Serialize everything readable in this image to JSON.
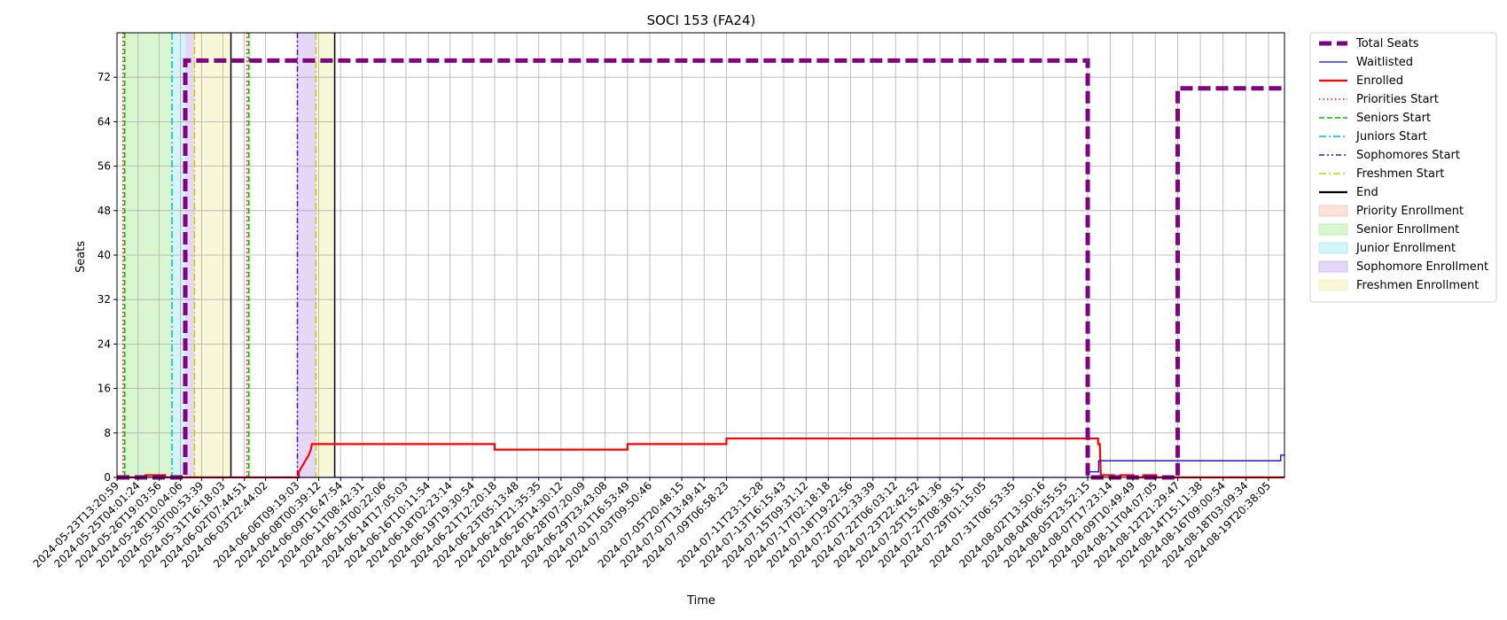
{
  "chart_data": {
    "type": "line",
    "title": "SOCI 153 (FA24)",
    "xlabel": "Time",
    "ylabel": "Seats",
    "ylim": [
      0,
      80
    ],
    "yticks": [
      0,
      8,
      16,
      24,
      32,
      40,
      48,
      56,
      64,
      72
    ],
    "xlim": [
      "2024-05-23T13:20:59",
      "2024-08-21T02:00:00"
    ],
    "xtick_labels": [
      "2024-05-23T13:20:59",
      "2024-05-25T04:01:24",
      "2024-05-26T19:03:56",
      "2024-05-28T10:04:06",
      "2024-05-30T00:53:39",
      "2024-05-31T16:18:03",
      "2024-06-02T07:44:51",
      "2024-06-03T22:44:02",
      "2024-06-06T09:19:03",
      "2024-06-08T00:39:12",
      "2024-06-09T16:47:54",
      "2024-06-11T08:42:31",
      "2024-06-13T00:22:06",
      "2024-06-14T17:05:03",
      "2024-06-16T10:11:54",
      "2024-06-18T02:23:14",
      "2024-06-19T19:30:54",
      "2024-06-21T12:20:18",
      "2024-06-23T05:13:48",
      "2024-06-24T21:35:35",
      "2024-06-26T14:30:12",
      "2024-06-28T07:20:09",
      "2024-06-29T23:43:08",
      "2024-07-01T16:53:49",
      "2024-07-03T09:50:46",
      "2024-07-05T20:48:15",
      "2024-07-07T13:49:41",
      "2024-07-09T06:58:23",
      "2024-07-11T23:15:28",
      "2024-07-13T16:15:43",
      "2024-07-15T09:31:12",
      "2024-07-17T02:18:18",
      "2024-07-18T19:22:56",
      "2024-07-20T12:33:39",
      "2024-07-22T06:03:12",
      "2024-07-23T22:42:52",
      "2024-07-25T15:41:36",
      "2024-07-27T08:38:51",
      "2024-07-29T01:15:05",
      "2024-07-31T06:53:35",
      "2024-08-02T13:50:16",
      "2024-08-04T06:55:55",
      "2024-08-05T23:52:15",
      "2024-08-07T17:23:14",
      "2024-08-09T10:49:49",
      "2024-08-11T04:07:05",
      "2024-08-12T21:29:47",
      "2024-08-14T15:11:38",
      "2024-08-16T09:00:54",
      "2024-08-18T03:09:34",
      "2024-08-19T20:38:05"
    ],
    "grid": true,
    "legend_position": "outside-right",
    "series": [
      {
        "name": "Total Seats",
        "color": "#800080",
        "style": "dashed-thick",
        "points": [
          [
            "2024-05-23T13:20:59",
            0
          ],
          [
            "2024-05-28T19:00:00",
            0
          ],
          [
            "2024-05-28T19:00:00",
            75
          ],
          [
            "2024-08-05T23:52:15",
            75
          ],
          [
            "2024-08-05T23:52:15",
            0
          ],
          [
            "2024-08-12T21:29:47",
            0
          ],
          [
            "2024-08-12T21:29:47",
            70
          ],
          [
            "2024-08-21T02:00:00",
            70
          ]
        ]
      },
      {
        "name": "Waitlisted",
        "color": "#0000ff",
        "style": "solid-thin",
        "points": [
          [
            "2024-05-23T13:20:59",
            0
          ],
          [
            "2024-08-06T00:00:00",
            0
          ],
          [
            "2024-08-06T00:00:00",
            1
          ],
          [
            "2024-08-06T20:00:00",
            1
          ],
          [
            "2024-08-06T20:00:00",
            3
          ],
          [
            "2024-08-20T19:00:00",
            3
          ],
          [
            "2024-08-20T19:00:00",
            4
          ],
          [
            "2024-08-21T02:00:00",
            4
          ]
        ]
      },
      {
        "name": "Enrolled",
        "color": "#ff0000",
        "style": "solid",
        "points": [
          [
            "2024-05-23T13:20:59",
            0
          ],
          [
            "2024-05-25T18:00:00",
            0
          ],
          [
            "2024-05-25T18:00:00",
            0.4
          ],
          [
            "2024-05-27T06:00:00",
            0.4
          ],
          [
            "2024-05-27T06:00:00",
            0
          ],
          [
            "2024-06-06T12:00:00",
            0
          ],
          [
            "2024-06-06T12:00:00",
            1
          ],
          [
            "2024-06-06T18:00:00",
            2
          ],
          [
            "2024-06-07T00:00:00",
            3
          ],
          [
            "2024-06-07T06:00:00",
            4
          ],
          [
            "2024-06-07T10:00:00",
            5
          ],
          [
            "2024-06-07T12:00:00",
            6
          ],
          [
            "2024-06-21T12:20:18",
            6
          ],
          [
            "2024-06-21T12:20:18",
            5
          ],
          [
            "2024-07-01T16:53:49",
            5
          ],
          [
            "2024-07-01T16:53:49",
            6
          ],
          [
            "2024-07-09T06:58:23",
            6
          ],
          [
            "2024-07-09T06:58:23",
            7
          ],
          [
            "2024-08-06T19:00:00",
            7
          ],
          [
            "2024-08-06T19:00:00",
            6
          ],
          [
            "2024-08-06T22:00:00",
            6
          ],
          [
            "2024-08-07T00:00:00",
            0.4
          ],
          [
            "2024-08-08T00:00:00",
            0.4
          ],
          [
            "2024-08-08T00:00:00",
            0
          ],
          [
            "2024-08-08T12:00:00",
            0
          ],
          [
            "2024-08-08T12:00:00",
            0.4
          ],
          [
            "2024-08-09T12:00:00",
            0.4
          ],
          [
            "2024-08-09T12:00:00",
            0
          ],
          [
            "2024-08-10T06:00:00",
            0
          ],
          [
            "2024-08-10T06:00:00",
            0.4
          ],
          [
            "2024-08-11T06:00:00",
            0.4
          ],
          [
            "2024-08-11T06:00:00",
            0
          ],
          [
            "2024-08-21T02:00:00",
            0
          ]
        ]
      }
    ],
    "vlines": [
      {
        "name": "Priorities Start",
        "color": "#ff0000",
        "style": "dotted",
        "x": [
          "2024-05-24T00:30:00",
          "2024-06-02T12:30:00"
        ]
      },
      {
        "name": "Seniors Start",
        "color": "#00bb00",
        "style": "dashed",
        "x": [
          "2024-05-24T03:30:00",
          "2024-06-02T16:00:00"
        ]
      },
      {
        "name": "Juniors Start",
        "color": "#00bfbf",
        "style": "dashdot",
        "x": [
          "2024-05-27T18:30:00"
        ]
      },
      {
        "name": "Sophomores Start",
        "color": "#6000c0",
        "style": "dashdotdot",
        "x": [
          "2024-06-06T09:19:03"
        ]
      },
      {
        "name": "Freshmen Start",
        "color": "#cccc00",
        "style": "dashdot",
        "x": [
          "2024-05-29T12:00:00",
          "2024-06-07T19:30:00"
        ]
      },
      {
        "name": "End",
        "color": "#000000",
        "style": "solid",
        "x": [
          "2024-06-01T07:00:00",
          "2024-06-09T06:00:00"
        ]
      }
    ],
    "spans": [
      {
        "name": "Priority Enrollment",
        "color": "#f4b89c",
        "ranges": [
          [
            "2024-05-24T00:30:00",
            "2024-05-24T03:30:00"
          ],
          [
            "2024-06-02T12:30:00",
            "2024-06-02T16:00:00"
          ]
        ]
      },
      {
        "name": "Senior Enrollment",
        "color": "#9ee88a",
        "ranges": [
          [
            "2024-05-24T03:30:00",
            "2024-05-27T18:30:00"
          ],
          [
            "2024-06-02T16:00:00",
            "2024-06-02T19:00:00"
          ]
        ]
      },
      {
        "name": "Junior Enrollment",
        "color": "#92e6ef",
        "ranges": [
          [
            "2024-05-27T18:30:00",
            "2024-05-28T19:00:00"
          ]
        ]
      },
      {
        "name": "Sophomore Enrollment",
        "color": "#bf9cec",
        "ranges": [
          [
            "2024-05-28T19:00:00",
            "2024-05-29T12:00:00"
          ],
          [
            "2024-06-06T09:19:03",
            "2024-06-07T19:30:00"
          ]
        ]
      },
      {
        "name": "Freshmen Enrollment",
        "color": "#eeeea0",
        "ranges": [
          [
            "2024-05-29T12:00:00",
            "2024-06-01T07:00:00"
          ],
          [
            "2024-06-07T19:30:00",
            "2024-06-09T06:00:00"
          ]
        ]
      }
    ]
  }
}
